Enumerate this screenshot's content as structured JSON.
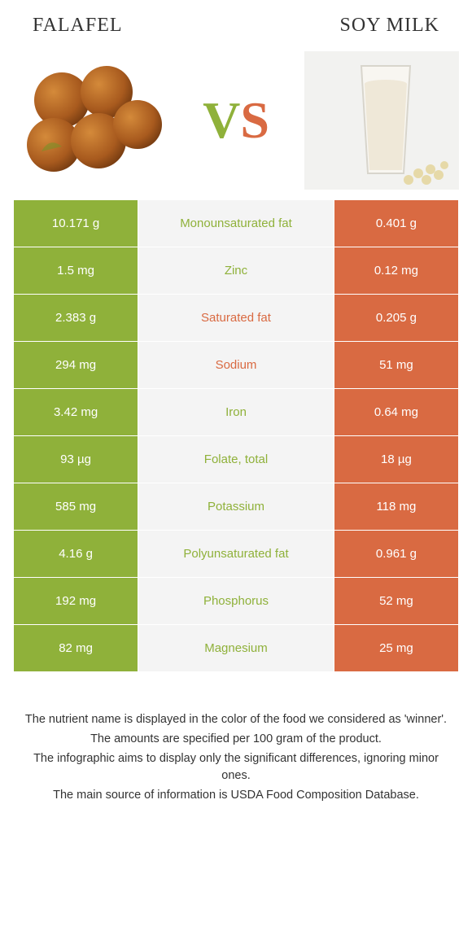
{
  "header": {
    "left_title": "Falafel",
    "right_title": "Soy milk"
  },
  "vs": {
    "v": "V",
    "s": "S"
  },
  "colors": {
    "left": "#8fb13a",
    "right": "#d96a42",
    "mid_bg": "#f4f4f4"
  },
  "table": {
    "rows": [
      {
        "left": "10.171 g",
        "label": "Monounsaturated fat",
        "right": "0.401 g",
        "winner": "left"
      },
      {
        "left": "1.5 mg",
        "label": "Zinc",
        "right": "0.12 mg",
        "winner": "left"
      },
      {
        "left": "2.383 g",
        "label": "Saturated fat",
        "right": "0.205 g",
        "winner": "right"
      },
      {
        "left": "294 mg",
        "label": "Sodium",
        "right": "51 mg",
        "winner": "right"
      },
      {
        "left": "3.42 mg",
        "label": "Iron",
        "right": "0.64 mg",
        "winner": "left"
      },
      {
        "left": "93 µg",
        "label": "Folate, total",
        "right": "18 µg",
        "winner": "left"
      },
      {
        "left": "585 mg",
        "label": "Potassium",
        "right": "118 mg",
        "winner": "left"
      },
      {
        "left": "4.16 g",
        "label": "Polyunsaturated fat",
        "right": "0.961 g",
        "winner": "left"
      },
      {
        "left": "192 mg",
        "label": "Phosphorus",
        "right": "52 mg",
        "winner": "left"
      },
      {
        "left": "82 mg",
        "label": "Magnesium",
        "right": "25 mg",
        "winner": "left"
      }
    ]
  },
  "footnote": {
    "lines": [
      "The nutrient name is displayed in the color of the food we considered as 'winner'.",
      "The amounts are specified per 100 gram of the product.",
      "The infographic aims to display only the significant differences, ignoring minor ones.",
      "The main source of information is USDA Food Composition Database."
    ]
  }
}
